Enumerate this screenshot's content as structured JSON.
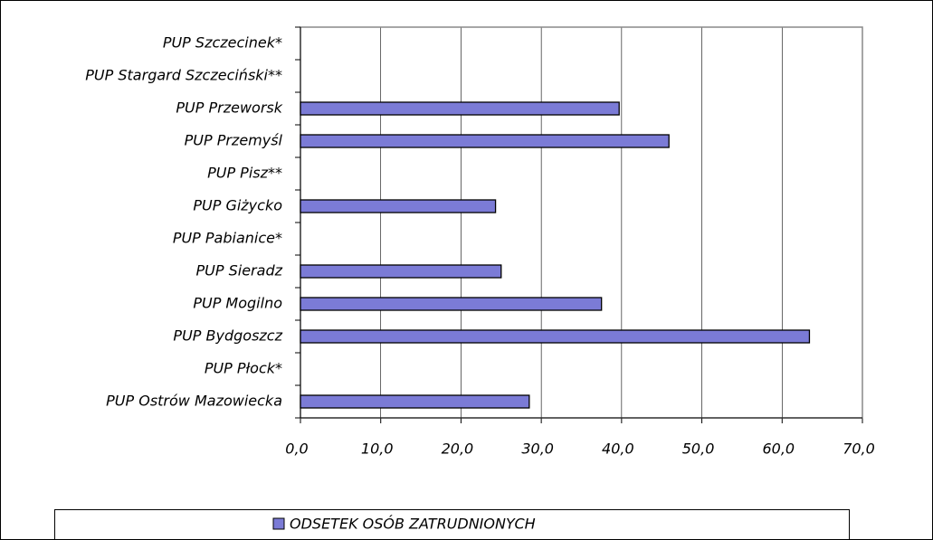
{
  "chart_data": {
    "type": "bar",
    "orientation": "horizontal",
    "categories": [
      "PUP Szczecinek*",
      "PUP Stargard Szczeciński**",
      "PUP Przeworsk",
      "PUP Przemyśl",
      "PUP Pisz**",
      "PUP Giżycko",
      "PUP Pabianice*",
      "PUP Sieradz",
      "PUP Mogilno",
      "PUP Bydgoszcz",
      "PUP Płock*",
      "PUP Ostrów Mazowiecka"
    ],
    "series": [
      {
        "name": "ODSETEK OSÓB ZATRUDNIONYCH",
        "color": "#7b7bd6",
        "values": [
          null,
          null,
          39.7,
          45.9,
          null,
          24.3,
          null,
          25.0,
          37.5,
          63.4,
          null,
          28.5
        ]
      }
    ],
    "xlim": [
      0,
      70
    ],
    "xticks": [
      {
        "value": 0,
        "label": "0,0"
      },
      {
        "value": 10,
        "label": "10,0"
      },
      {
        "value": 20,
        "label": "20,0"
      },
      {
        "value": 30,
        "label": "30,0"
      },
      {
        "value": 40,
        "label": "40,0"
      },
      {
        "value": 50,
        "label": "50,0"
      },
      {
        "value": 60,
        "label": "60,0"
      },
      {
        "value": 70,
        "label": "70,0"
      }
    ],
    "grid": true,
    "legend": "bottom"
  }
}
